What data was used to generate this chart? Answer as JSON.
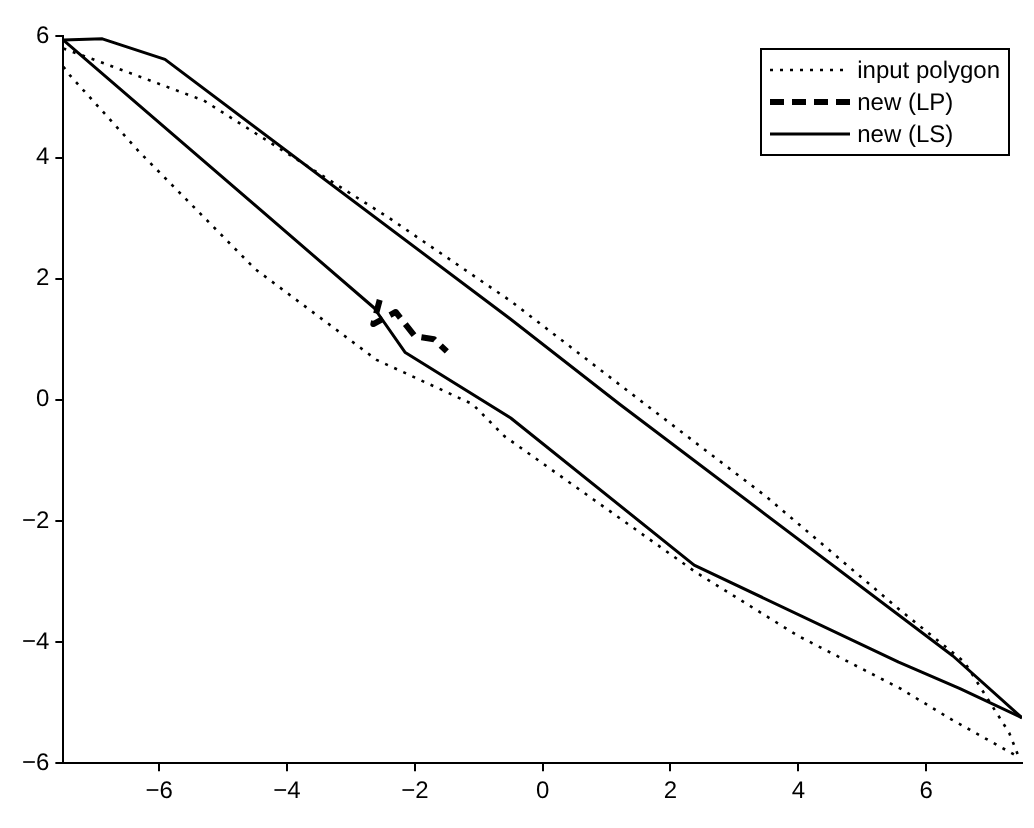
{
  "chart_data": {
    "type": "line",
    "xlim": [
      -7.5,
      7.5
    ],
    "ylim": [
      -6,
      6
    ],
    "xticks": [
      -6,
      -4,
      -2,
      0,
      2,
      4,
      6
    ],
    "yticks": [
      -6,
      -4,
      -2,
      0,
      2,
      4,
      6
    ],
    "grid": false,
    "legend": "top right",
    "marker": "none",
    "series": [
      {
        "name": "input polygon",
        "color": "#000000",
        "line_style": "dotted",
        "x": [
          -7.5,
          -6.9,
          -5.3,
          -3.7,
          -2.4,
          -0.5,
          1.6,
          3.5,
          5.6,
          6.6,
          7.3,
          7.45
        ],
        "values": [
          5.8,
          5.57,
          4.94,
          3.87,
          3,
          1.63,
          -0.07,
          -1.6,
          -3.48,
          -4.33,
          -5.5,
          -5.9
        ]
      },
      {
        "color": "#000000",
        "line_style": "dotted",
        "x": [
          -7.5,
          -7.4,
          -6.3,
          -4.5,
          -2.6,
          -1.1,
          -0.6,
          0.8,
          2.4,
          4,
          5.6,
          6.4,
          7.45
        ],
        "values": [
          5.5,
          5.36,
          4.08,
          2.16,
          0.66,
          -0.07,
          -0.6,
          -1.65,
          -2.85,
          -3.9,
          -4.77,
          -5.28,
          -5.9
        ]
      },
      {
        "name": "new (LP)",
        "color": "#000000",
        "line_style": "dashed",
        "x": [
          -2.55,
          -2.65,
          -2.3,
          -2.0,
          -1.7,
          -1.5
        ],
        "values": [
          1.65,
          1.25,
          1.45,
          1.05,
          1.0,
          0.8
        ]
      },
      {
        "name": "new (LS)",
        "color": "#000000",
        "line_style": "solid",
        "x": [
          -7.5,
          -6.89,
          -5.91,
          -0.5,
          1.2,
          6.42,
          7.5
        ],
        "values": [
          5.94,
          5.96,
          5.62,
          1.33,
          -0.07,
          -4.23,
          -5.25
        ]
      },
      {
        "color": "#000000",
        "line_style": "solid",
        "x": [
          -7.5,
          -2.64,
          -2.15,
          -0.5,
          2.37,
          5.57,
          6.53,
          7.5
        ],
        "values": [
          5.94,
          1.52,
          0.78,
          -0.3,
          -2.73,
          -4.33,
          -4.77,
          -5.25
        ]
      }
    ]
  }
}
